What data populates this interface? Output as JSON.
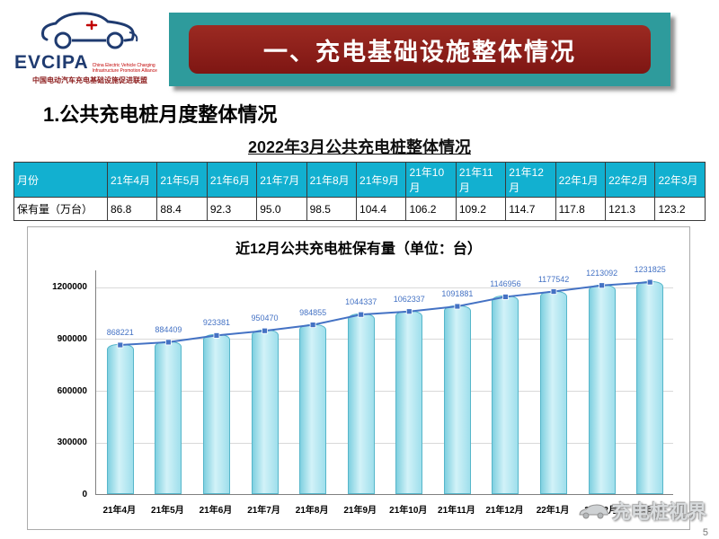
{
  "logo": {
    "name": "EVCIPA",
    "subtitle_en": "China Electric Vehicle\nCharging Infrastructure\nPromotion Alliance",
    "subtitle_zh": "中国电动汽车充电基础设施促进联盟"
  },
  "banner": {
    "title": "一、充电基础设施整体情况"
  },
  "section": {
    "heading": "1.公共充电桩月度整体情况"
  },
  "table": {
    "title": "2022年3月公共充电桩整体情况",
    "header": [
      "月份",
      "21年4月",
      "21年5月",
      "21年6月",
      "21年7月",
      "21年8月",
      "21年9月",
      "21年10月",
      "21年11月",
      "21年12月",
      "22年1月",
      "22年2月",
      "22年3月"
    ],
    "row_label": "保有量（万台）",
    "values": [
      "86.8",
      "88.4",
      "92.3",
      "95.0",
      "98.5",
      "104.4",
      "106.2",
      "109.2",
      "114.7",
      "117.8",
      "121.3",
      "123.2"
    ]
  },
  "chart_data": {
    "type": "bar",
    "title": "近12月公共充电桩保有量（单位：台）",
    "categories": [
      "21年4月",
      "21年5月",
      "21年6月",
      "21年7月",
      "21年8月",
      "21年9月",
      "21年10月",
      "21年11月",
      "21年12月",
      "22年1月",
      "22年2月",
      "22年3月"
    ],
    "values": [
      868221,
      884409,
      923381,
      950470,
      984855,
      1044337,
      1062337,
      1091881,
      1146956,
      1177542,
      1213092,
      1231825
    ],
    "ylim": [
      0,
      1300000
    ],
    "yticks": [
      0,
      300000,
      600000,
      900000,
      1200000
    ],
    "grid": "horizontal",
    "legend": "none",
    "bar_color": "#aee6f0",
    "line_color": "#4472c4",
    "label_color": "#4472c4"
  },
  "footer": {
    "watermark": "充电桩视界",
    "page_number": "5"
  }
}
